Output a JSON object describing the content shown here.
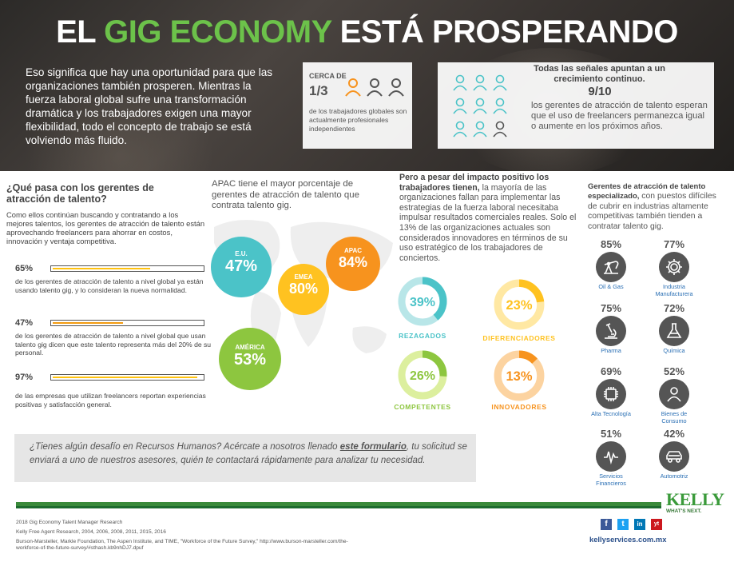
{
  "header": {
    "title_pre": "EL ",
    "title_green": "GIG ECONOMY",
    "title_post": " ESTÁ PROSPERANDO",
    "intro": "Eso significa que hay una oportunidad para que las organizaciones también prosperen. Mientras la fuerza laboral global sufre una transformación dramática y los trabajadores exigen una mayor flexibilidad, todo el concepto de trabajo se está volviendo más fluido."
  },
  "box1": {
    "label": "CERCA DE",
    "fraction": "1/3",
    "description": "de los trabajadores globales son actualmente profesionales independientes"
  },
  "box2": {
    "heading": "Todas las señales apuntan a un crecimiento continuo.",
    "fraction": "9/10",
    "description": "los gerentes de atracción de talento esperan que el uso de freelancers permanezca igual o aumente en los próximos años."
  },
  "left": {
    "title": "¿Qué pasa con los gerentes de atracción de talento?",
    "description": "Como ellos continúan buscando y contratando a los mejores talentos, los gerentes de atracción de talento están aprovechando freelancers para ahorrar en costos, innovación y ventaja competitiva.",
    "stats": [
      {
        "pct": "65%",
        "value": 0.65,
        "text": "de los gerentes de atracción de talento a nivel global ya están usando talento gig, y lo consideran la nueva normalidad."
      },
      {
        "pct": "47%",
        "value": 0.47,
        "text": "de los gerentes de atracción de talento a nivel global que usan talento gig dicen que este talento representa más del 20% de su personal."
      },
      {
        "pct": "97%",
        "value": 0.97,
        "text": "de las empresas que utilizan freelancers reportan experiencias positivas y satisfacción general."
      }
    ]
  },
  "map": {
    "heading": "APAC tiene el mayor porcentaje de gerentes de atracción de talento que contrata talento gig.",
    "regions": [
      {
        "name": "E.U.",
        "value": "47%",
        "color": "#4bc3c8"
      },
      {
        "name": "EMEA",
        "value": "80%",
        "color": "#ffc220"
      },
      {
        "name": "APAC",
        "value": "84%",
        "color": "#f7931e"
      },
      {
        "name": "AMÉRICA",
        "value": "53%",
        "color": "#8dc63f"
      }
    ]
  },
  "pero": {
    "bold": "Pero a pesar del impacto positivo los trabajadores tienen,",
    "rest": " la mayoría de las organizaciones fallan para implementar las estrategias de la fuerza laboral necesitaba impulsar resultados comerciales reales. Solo el 13% de las organizaciones actuales son considerados innovadores en términos de su uso estratégico de los trabajadores de conciertos.",
    "donuts": [
      {
        "pct": "39%",
        "value": 39,
        "label": "REZAGADOS",
        "color": "#4bc3c8",
        "light": "#b8e6e8"
      },
      {
        "pct": "23%",
        "value": 23,
        "label": "DIFERENCIADORES",
        "color": "#ffc220",
        "light": "#ffe8a3"
      },
      {
        "pct": "26%",
        "value": 26,
        "label": "COMPETENTES",
        "color": "#8dc63f",
        "light": "#dcef9e"
      },
      {
        "pct": "13%",
        "value": 13,
        "label": "INNOVADORES",
        "color": "#f7931e",
        "light": "#fcd3a0"
      }
    ]
  },
  "industries": {
    "heading_bold": "Gerentes de atracción de talento especializado,",
    "heading_rest": " con puestos difíciles de cubrir en industrias altamente competitivas también tienden a contratar talento gig.",
    "items": [
      {
        "pct": "85%",
        "name": "Oil & Gas",
        "icon": "oil-pump-icon"
      },
      {
        "pct": "77%",
        "name": "Industria Manufacturera",
        "icon": "gear-icon"
      },
      {
        "pct": "75%",
        "name": "Pharma",
        "icon": "microscope-icon"
      },
      {
        "pct": "72%",
        "name": "Química",
        "icon": "flask-icon"
      },
      {
        "pct": "69%",
        "name": "Alta Tecnología",
        "icon": "chip-icon"
      },
      {
        "pct": "52%",
        "name": "Bienes de Consumo",
        "icon": "person-icon"
      },
      {
        "pct": "51%",
        "name": "Servicios Financieros",
        "icon": "chart-icon"
      },
      {
        "pct": "42%",
        "name": "Automotriz",
        "icon": "car-icon"
      }
    ]
  },
  "cta": {
    "pre": "¿Tienes algún desafío en Recursos Humanos? Acércate a nosotros llenado ",
    "link": "este formulario",
    "post": ", tu solicitud se enviará a uno de nuestros asesores, quién te contactará rápidamente para analizar tu necesidad."
  },
  "footer": {
    "ref1": "2018 Gig Economy Talent Manager Research",
    "ref2": "Kelly Free Agent Research, 2004, 2006, 2008, 2011, 2015, 2016",
    "ref3": "Burson-Marsteller, Markle Foundation, The Aspen Institute, and TIME, \"Workforce of the Future Survey,\" http://www.burson-marsteller.com/the-workforce-of-the-future-survey/#sthash.kb9nhDJ7.dpuf",
    "logo": "KELLY",
    "tagline": "WHAT'S NEXT.",
    "site": "kellyservices.com.mx",
    "social": [
      "f",
      "t",
      "in",
      "yt"
    ]
  },
  "colors": {
    "green": "#6cc24a",
    "teal": "#4bc3c8",
    "yellow": "#ffc220",
    "orange": "#f7931e",
    "lime": "#8dc63f"
  }
}
